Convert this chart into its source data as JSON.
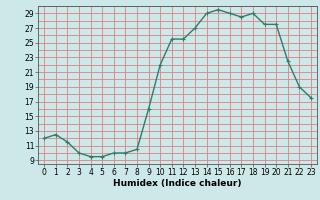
{
  "x": [
    0,
    1,
    2,
    3,
    4,
    5,
    6,
    7,
    8,
    9,
    10,
    11,
    12,
    13,
    14,
    15,
    16,
    17,
    18,
    19,
    20,
    21,
    22,
    23
  ],
  "y": [
    12.0,
    12.5,
    11.5,
    10.0,
    9.5,
    9.5,
    10.0,
    10.0,
    10.5,
    16.0,
    22.0,
    25.5,
    25.5,
    27.0,
    29.0,
    29.5,
    29.0,
    28.5,
    29.0,
    27.5,
    27.5,
    22.5,
    19.0,
    17.5
  ],
  "line_color": "#2e7d6e",
  "marker": "+",
  "marker_size": 3,
  "marker_color": "#2e7d6e",
  "bg_color": "#cce8e8",
  "grid_color": "#e08080",
  "xlabel": "Humidex (Indice chaleur)",
  "xlim": [
    -0.5,
    23.5
  ],
  "ylim": [
    8.5,
    30
  ],
  "yticks": [
    9,
    11,
    13,
    15,
    17,
    19,
    21,
    23,
    25,
    27,
    29
  ],
  "xticks": [
    0,
    1,
    2,
    3,
    4,
    5,
    6,
    7,
    8,
    9,
    10,
    11,
    12,
    13,
    14,
    15,
    16,
    17,
    18,
    19,
    20,
    21,
    22,
    23
  ],
  "xlabel_fontsize": 6.5,
  "tick_fontsize": 5.5,
  "line_width": 1.0,
  "fig_bg_color": "#cce8e8",
  "marker_edge_width": 0.8
}
